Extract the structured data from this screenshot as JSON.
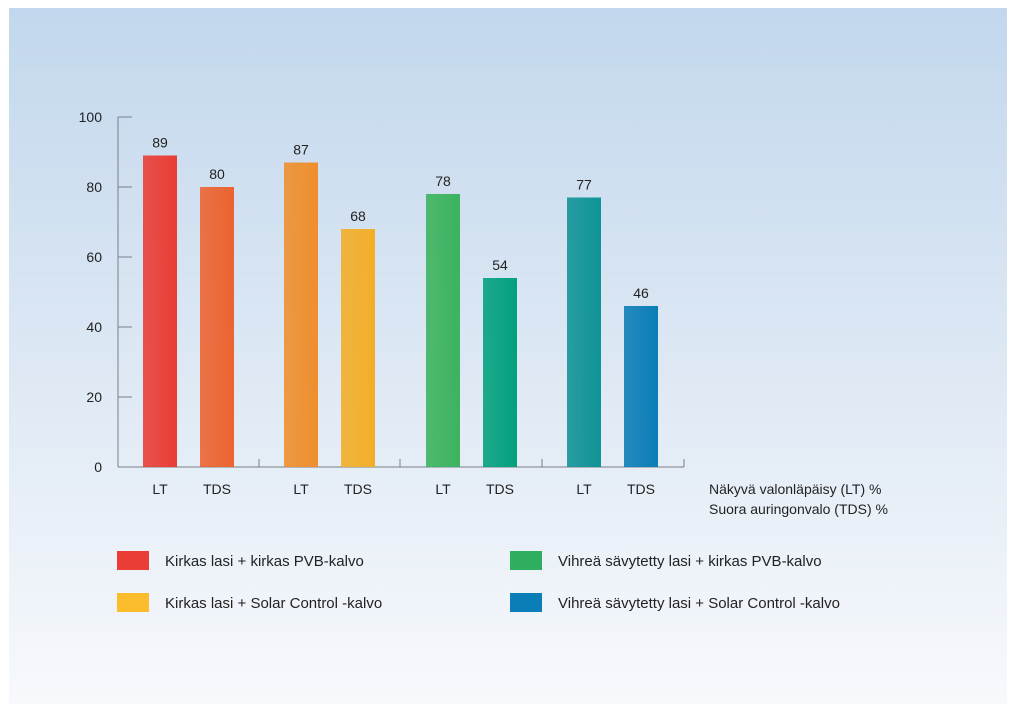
{
  "colors": {
    "red": "#e93d35",
    "red_orange": "#ec6330",
    "orange": "#ef8e2d",
    "amber": "#f2ae28",
    "green": "#3bb35e",
    "teal_green": "#03a07e",
    "teal": "#0f9396",
    "blue": "#0b7db7"
  },
  "chart_data": {
    "type": "bar",
    "categories": [
      "LT",
      "TDS",
      "LT",
      "TDS",
      "LT",
      "TDS",
      "LT",
      "TDS"
    ],
    "values": [
      89,
      80,
      87,
      68,
      78,
      54,
      77,
      46
    ],
    "groups": [
      {
        "legend": "Kirkas lasi + kirkas PVB-kalvo",
        "bars": [
          {
            "label": "LT",
            "value": 89,
            "color": "#e93d35"
          },
          {
            "label": "TDS",
            "value": 80,
            "color": "#ec6330"
          }
        ]
      },
      {
        "legend": "Kirkas lasi + Solar Control -kalvo",
        "bars": [
          {
            "label": "LT",
            "value": 87,
            "color": "#ef8e2d"
          },
          {
            "label": "TDS",
            "value": 68,
            "color": "#f2ae28"
          }
        ]
      },
      {
        "legend": "Vihreä sävytetty lasi + kirkas PVB-kalvo",
        "bars": [
          {
            "label": "LT",
            "value": 78,
            "color": "#3bb35e"
          },
          {
            "label": "TDS",
            "value": 54,
            "color": "#03a07e"
          }
        ]
      },
      {
        "legend": "Vihreä sävytetty lasi + Solar Control -kalvo",
        "bars": [
          {
            "label": "LT",
            "value": 77,
            "color": "#0f9396"
          },
          {
            "label": "TDS",
            "value": 46,
            "color": "#0b7db7"
          }
        ]
      }
    ],
    "yticks": [
      0,
      20,
      40,
      60,
      80,
      100
    ],
    "ylim": [
      0,
      100
    ],
    "axis_notes": [
      "Näkyvä valonläpäisy (LT) %",
      "Suora auringonvalo (TDS) %"
    ],
    "legend": [
      {
        "label": "Kirkas lasi + kirkas PVB-kalvo",
        "color": "#e93d35"
      },
      {
        "label": "Kirkas lasi + Solar Control -kalvo",
        "color": "#fbbd2c"
      },
      {
        "label": "Vihreä sävytetty lasi + kirkas PVB-kalvo",
        "color": "#2eae5e"
      },
      {
        "label": "Vihreä sävytetty lasi + Solar Control -kalvo",
        "color": "#0b7db7"
      }
    ],
    "legend_position": "bottom",
    "grid": false
  }
}
